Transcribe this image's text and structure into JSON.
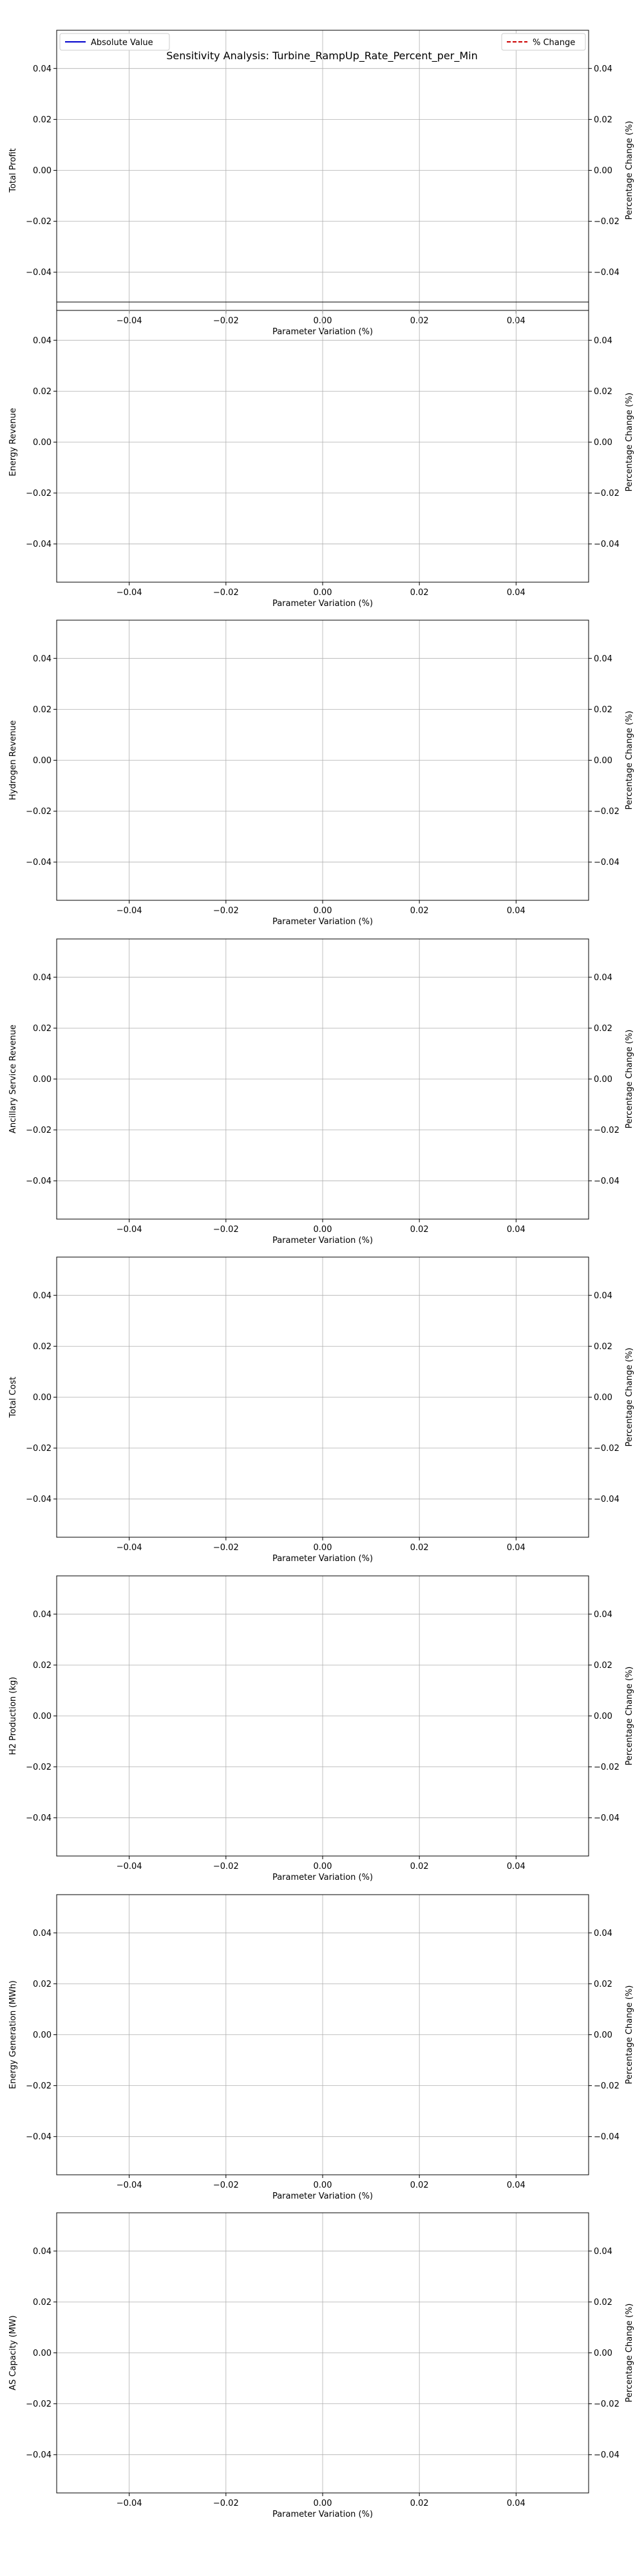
{
  "figure": {
    "title": "Sensitivity Analysis: Turbine_RampUp_Rate_Percent_per_Min",
    "legend": {
      "placement_left": "top-left",
      "placement_right": "top-right",
      "absolute_label": "Absolute Value",
      "percent_label": "% Change",
      "absolute_color": "#0000cc",
      "percent_color": "#cc0000"
    }
  },
  "chart_data": [
    {
      "type": "line",
      "ylabel": "Total Profit",
      "y2label": "Percentage Change (%)",
      "xlabel": "Parameter Variation (%)",
      "xlim": [
        -0.055,
        0.055
      ],
      "ylim": [
        -0.055,
        0.055
      ],
      "xticks": [
        -0.04,
        -0.02,
        0.0,
        0.02,
        0.04
      ],
      "yticks": [
        -0.04,
        -0.02,
        0.0,
        0.02,
        0.04
      ],
      "grid": true,
      "series": []
    },
    {
      "type": "line",
      "ylabel": "Energy Revenue",
      "y2label": "Percentage Change (%)",
      "xlabel": "Parameter Variation (%)",
      "xlim": [
        -0.055,
        0.055
      ],
      "ylim": [
        -0.055,
        0.055
      ],
      "xticks": [
        -0.04,
        -0.02,
        0.0,
        0.02,
        0.04
      ],
      "yticks": [
        -0.04,
        -0.02,
        0.0,
        0.02,
        0.04
      ],
      "grid": true,
      "series": []
    },
    {
      "type": "line",
      "ylabel": "Hydrogen Revenue",
      "y2label": "Percentage Change (%)",
      "xlabel": "Parameter Variation (%)",
      "xlim": [
        -0.055,
        0.055
      ],
      "ylim": [
        -0.055,
        0.055
      ],
      "xticks": [
        -0.04,
        -0.02,
        0.0,
        0.02,
        0.04
      ],
      "yticks": [
        -0.04,
        -0.02,
        0.0,
        0.02,
        0.04
      ],
      "grid": true,
      "series": []
    },
    {
      "type": "line",
      "ylabel": "Ancillary Service Revenue",
      "y2label": "Percentage Change (%)",
      "xlabel": "Parameter Variation (%)",
      "xlim": [
        -0.055,
        0.055
      ],
      "ylim": [
        -0.055,
        0.055
      ],
      "xticks": [
        -0.04,
        -0.02,
        0.0,
        0.02,
        0.04
      ],
      "yticks": [
        -0.04,
        -0.02,
        0.0,
        0.02,
        0.04
      ],
      "grid": true,
      "series": []
    },
    {
      "type": "line",
      "ylabel": "Total Cost",
      "y2label": "Percentage Change (%)",
      "xlabel": "Parameter Variation (%)",
      "xlim": [
        -0.055,
        0.055
      ],
      "ylim": [
        -0.055,
        0.055
      ],
      "xticks": [
        -0.04,
        -0.02,
        0.0,
        0.02,
        0.04
      ],
      "yticks": [
        -0.04,
        -0.02,
        0.0,
        0.02,
        0.04
      ],
      "grid": true,
      "series": []
    },
    {
      "type": "line",
      "ylabel": "H2 Production (kg)",
      "y2label": "Percentage Change (%)",
      "xlabel": "Parameter Variation (%)",
      "xlim": [
        -0.055,
        0.055
      ],
      "ylim": [
        -0.055,
        0.055
      ],
      "xticks": [
        -0.04,
        -0.02,
        0.0,
        0.02,
        0.04
      ],
      "yticks": [
        -0.04,
        -0.02,
        0.0,
        0.02,
        0.04
      ],
      "grid": true,
      "series": []
    },
    {
      "type": "line",
      "ylabel": "Energy Generation (MWh)",
      "y2label": "Percentage Change (%)",
      "xlabel": "Parameter Variation (%)",
      "xlim": [
        -0.055,
        0.055
      ],
      "ylim": [
        -0.055,
        0.055
      ],
      "xticks": [
        -0.04,
        -0.02,
        0.0,
        0.02,
        0.04
      ],
      "yticks": [
        -0.04,
        -0.02,
        0.0,
        0.02,
        0.04
      ],
      "grid": true,
      "series": []
    },
    {
      "type": "line",
      "ylabel": "AS Capacity (MW)",
      "y2label": "Percentage Change (%)",
      "xlabel": "Parameter Variation (%)",
      "xlim": [
        -0.055,
        0.055
      ],
      "ylim": [
        -0.055,
        0.055
      ],
      "xticks": [
        -0.04,
        -0.02,
        0.0,
        0.02,
        0.04
      ],
      "yticks": [
        -0.04,
        -0.02,
        0.0,
        0.02,
        0.04
      ],
      "grid": true,
      "series": []
    }
  ]
}
